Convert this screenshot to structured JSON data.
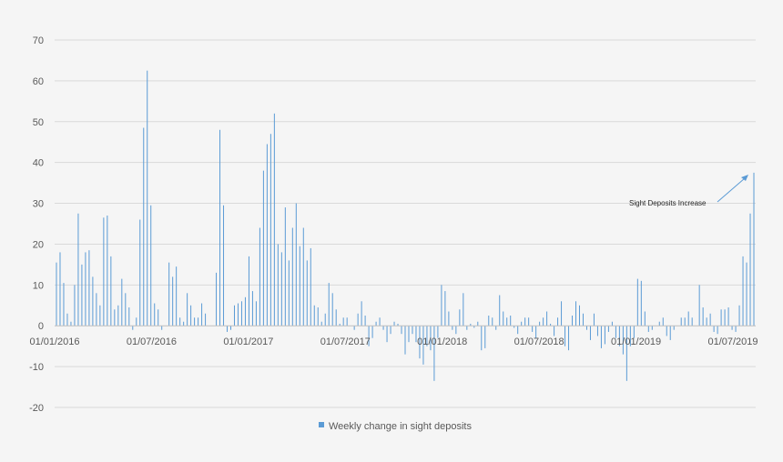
{
  "chart_data": {
    "type": "bar",
    "title": "",
    "xlabel": "",
    "ylabel": "",
    "ylim": [
      -20,
      70
    ],
    "y_ticks": [
      -20,
      -10,
      0,
      10,
      20,
      30,
      40,
      50,
      60,
      70
    ],
    "x_tick_labels": [
      "01/01/2016",
      "01/07/2016",
      "01/01/2017",
      "01/07/2017",
      "01/01/2018",
      "01/07/2018",
      "01/01/2019",
      "01/07/2019"
    ],
    "grid": true,
    "legend_position": "bottom",
    "color": "#5b9bd5",
    "annotation": {
      "text": "Sight Deposits Increase"
    },
    "series": [
      {
        "name": "Weekly change in sight deposits",
        "values": [
          15.5,
          18.0,
          10.5,
          3.0,
          1.0,
          10.0,
          27.5,
          15.0,
          18.0,
          18.5,
          12.0,
          8.0,
          5.0,
          26.5,
          27.0,
          17.0,
          4.0,
          5.0,
          11.5,
          8.0,
          4.5,
          -1.0,
          2.0,
          26.0,
          48.5,
          62.5,
          29.5,
          5.5,
          4.0,
          -1.0,
          0.0,
          15.5,
          12.0,
          14.5,
          2.0,
          1.0,
          8.0,
          5.0,
          2.0,
          2.0,
          5.5,
          3.0,
          0.0,
          0.0,
          13.0,
          48.0,
          29.5,
          -1.5,
          -1.0,
          5.0,
          5.5,
          6.0,
          7.0,
          17.0,
          8.5,
          6.0,
          24.0,
          38.0,
          44.5,
          47.0,
          52.0,
          20.0,
          18.0,
          29.0,
          16.0,
          24.0,
          30.0,
          19.5,
          24.0,
          16.0,
          19.0,
          5.0,
          4.5,
          1.0,
          3.0,
          10.5,
          8.0,
          4.0,
          0.5,
          2.0,
          2.0,
          0.0,
          -1.0,
          3.0,
          6.0,
          2.5,
          -5.0,
          -3.0,
          1.0,
          2.0,
          -1.0,
          -4.0,
          -2.0,
          1.0,
          0.5,
          -2.0,
          -7.0,
          -4.0,
          -2.0,
          -4.0,
          -8.0,
          -9.5,
          -5.0,
          -6.0,
          -13.5,
          -3.0,
          10.0,
          8.5,
          3.5,
          -1.0,
          -2.0,
          4.0,
          8.0,
          -1.0,
          0.5,
          -0.5,
          1.0,
          -6.0,
          -5.5,
          2.5,
          2.0,
          -1.0,
          7.5,
          3.5,
          2.0,
          2.5,
          -0.5,
          -2.0,
          1.0,
          2.0,
          2.0,
          -1.5,
          -3.0,
          1.0,
          2.0,
          3.5,
          0.5,
          -2.5,
          2.0,
          6.0,
          -5.0,
          -6.0,
          2.5,
          6.0,
          5.0,
          3.0,
          -1.0,
          -3.5,
          3.0,
          -2.5,
          -5.5,
          -4.5,
          -1.5,
          1.0,
          -3.0,
          -5.0,
          -7.0,
          -13.5,
          -5.0,
          -3.0,
          11.5,
          11.0,
          3.5,
          -1.5,
          -1.0,
          0.0,
          1.0,
          2.0,
          -2.5,
          -3.5,
          -1.0,
          0.0,
          2.0,
          2.0,
          3.5,
          2.0,
          0.0,
          10.0,
          4.5,
          2.0,
          3.0,
          -1.5,
          -2.0,
          4.0,
          4.0,
          4.5,
          -1.0,
          -1.5,
          5.0,
          17.0,
          15.5,
          27.5,
          37.5
        ]
      }
    ]
  }
}
